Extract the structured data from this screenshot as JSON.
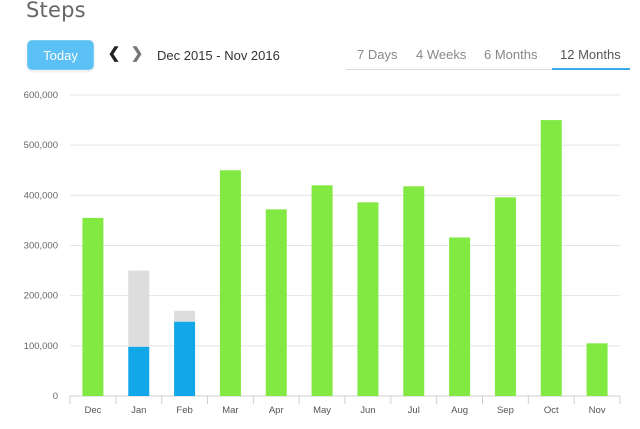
{
  "header": {
    "title": "Steps"
  },
  "toolbar": {
    "today_label": "Today",
    "prev_icon": "chevron-left-icon",
    "next_icon": "chevron-right-icon",
    "date_range": "Dec 2015 - Nov 2016"
  },
  "tabs": [
    {
      "label": "7 Days",
      "active": false
    },
    {
      "label": "4 Weeks",
      "active": false
    },
    {
      "label": "6 Months",
      "active": false
    },
    {
      "label": "12 Months",
      "active": true
    }
  ],
  "colors": {
    "accent": "#3aa7e6",
    "today_button": "#5bc0f5",
    "bar_green": "#82e842",
    "bar_blue": "#11a7e8",
    "bar_grey": "#dddddd",
    "grid": "#e4e4e4"
  },
  "chart_data": {
    "type": "bar",
    "categories": [
      "Dec",
      "Jan",
      "Feb",
      "Mar",
      "Apr",
      "May",
      "Jun",
      "Jul",
      "Aug",
      "Sep",
      "Oct",
      "Nov"
    ],
    "values": [
      355000,
      250000,
      170000,
      450000,
      372000,
      420000,
      386000,
      418000,
      316000,
      396000,
      550000,
      105000
    ],
    "highlight_values": [
      null,
      98000,
      148000,
      null,
      null,
      null,
      null,
      null,
      null,
      null,
      null,
      null
    ],
    "ylim": [
      0,
      600000
    ],
    "yticks": [
      "0",
      "100,000",
      "200,000",
      "300,000",
      "400,000",
      "500,000",
      "600,000"
    ],
    "grid": true
  }
}
